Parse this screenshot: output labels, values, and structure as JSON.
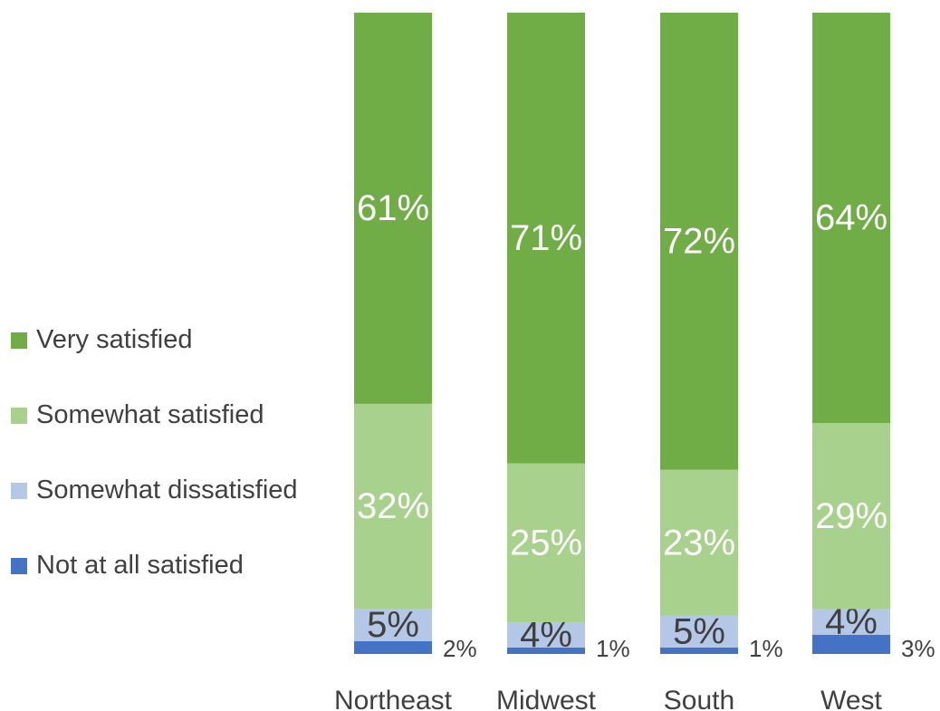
{
  "chart_data": {
    "type": "bar",
    "stacked": true,
    "percent": true,
    "categories": [
      "Northeast",
      "Midwest",
      "South",
      "West"
    ],
    "series": [
      {
        "name": "Not at all satisfied",
        "color": "#4472C4",
        "values": [
          2,
          1,
          1,
          3
        ],
        "labels": [
          "2%",
          "1%",
          "1%",
          "3%"
        ]
      },
      {
        "name": "Somewhat dissatisfied",
        "color": "#B4C7E7",
        "values": [
          5,
          4,
          5,
          4
        ],
        "labels": [
          "5%",
          "4%",
          "5%",
          "4%"
        ]
      },
      {
        "name": "Somewhat satisfied",
        "color": "#A9D18E",
        "values": [
          32,
          25,
          23,
          29
        ],
        "labels": [
          "32%",
          "25%",
          "23%",
          "29%"
        ]
      },
      {
        "name": "Very satisfied",
        "color": "#70AD47",
        "values": [
          61,
          71,
          72,
          64
        ],
        "labels": [
          "61%",
          "71%",
          "72%",
          "64%"
        ]
      }
    ],
    "legend_order": [
      "Very satisfied",
      "Somewhat satisfied",
      "Somewhat dissatisfied",
      "Not at all satisfied"
    ],
    "legend_position": "left",
    "ylim": [
      0,
      100
    ],
    "grid": false,
    "title": "",
    "xlabel": "",
    "ylabel": ""
  }
}
